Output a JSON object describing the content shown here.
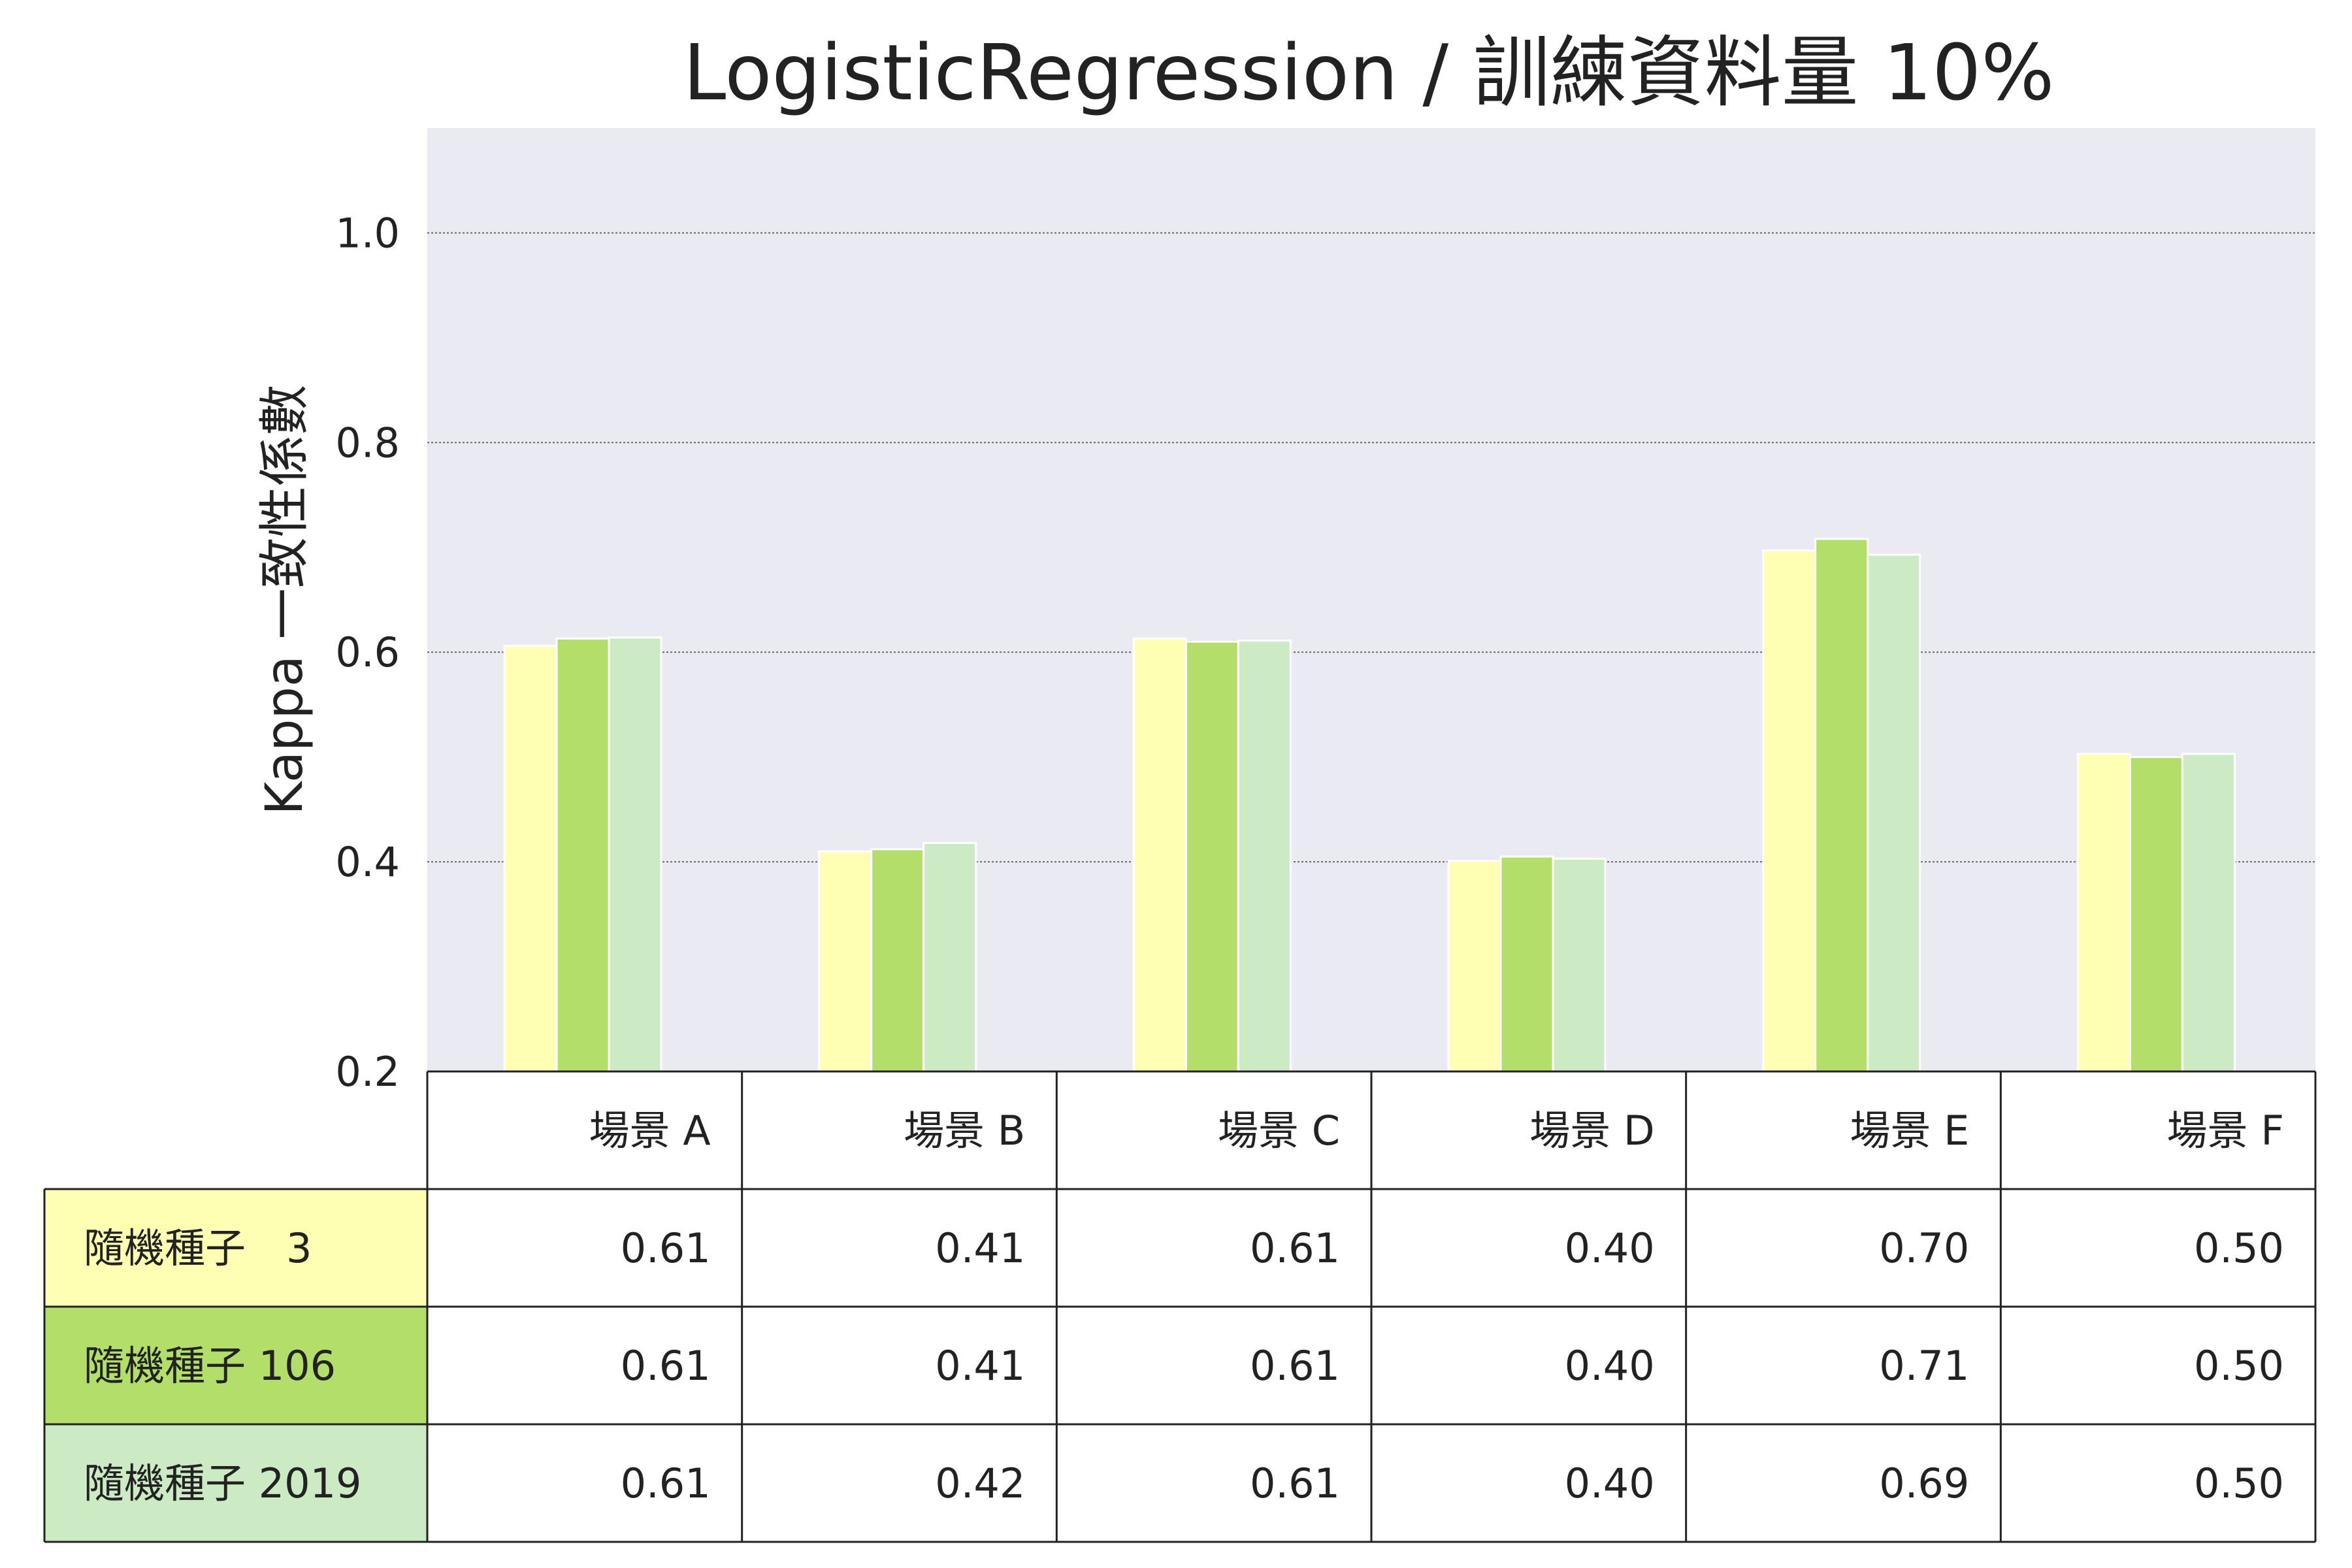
{
  "chart_data": {
    "type": "bar",
    "title": "LogisticRegression / 訓練資料量 10%",
    "ylabel": "Kappa 一致性係數",
    "xlabel": "",
    "ylim": [
      0.2,
      1.1
    ],
    "yticks": [
      0.2,
      0.4,
      0.6,
      0.8,
      1.0
    ],
    "ytick_labels": [
      "0.2",
      "0.4",
      "0.6",
      "0.8",
      "1.0"
    ],
    "grid": true,
    "legend_placement": "table-below",
    "background_color": "#eaeaf2",
    "categories": [
      "場景 A",
      "場景 B",
      "場景 C",
      "場景 D",
      "場景 E",
      "場景 F"
    ],
    "series": [
      {
        "name": "隨機種子　3",
        "color": "#ffffb3",
        "values": [
          0.606,
          0.41,
          0.613,
          0.401,
          0.697,
          0.503
        ],
        "table_values": [
          "0.61",
          "0.41",
          "0.61",
          "0.40",
          "0.70",
          "0.50"
        ]
      },
      {
        "name": "隨機種子 106",
        "color": "#b3de69",
        "values": [
          0.613,
          0.412,
          0.61,
          0.405,
          0.708,
          0.5
        ],
        "table_values": [
          "0.61",
          "0.41",
          "0.61",
          "0.40",
          "0.71",
          "0.50"
        ]
      },
      {
        "name": "隨機種子 2019",
        "color": "#ccebc5",
        "values": [
          0.614,
          0.418,
          0.611,
          0.403,
          0.693,
          0.503
        ],
        "table_values": [
          "0.61",
          "0.42",
          "0.61",
          "0.40",
          "0.69",
          "0.50"
        ]
      }
    ]
  }
}
